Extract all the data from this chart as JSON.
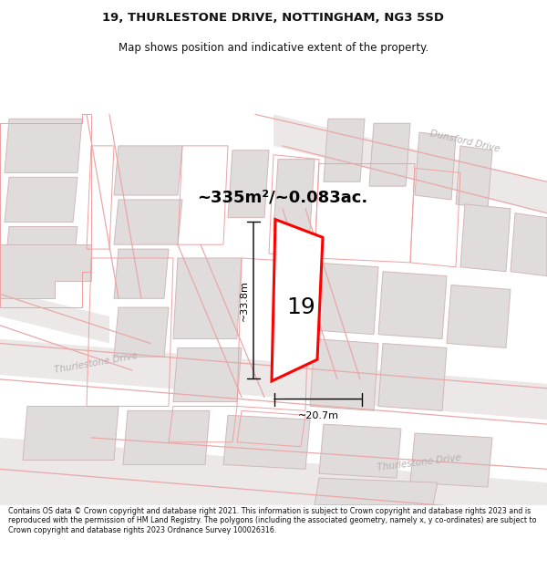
{
  "title": "19, THURLESTONE DRIVE, NOTTINGHAM, NG3 5SD",
  "subtitle": "Map shows position and indicative extent of the property.",
  "area_text": "~335m²/~0.083ac.",
  "width_text": "~20.7m",
  "height_text": "~33.8m",
  "number_text": "19",
  "footer": "Contains OS data © Crown copyright and database right 2021. This information is subject to Crown copyright and database rights 2023 and is reproduced with the permission of HM Land Registry. The polygons (including the associated geometry, namely x, y co-ordinates) are subject to Crown copyright and database rights 2023 Ordnance Survey 100026316.",
  "map_bg": "#f2eeee",
  "building_fill": "#d8d4d4",
  "building_edge": "#c8b8b8",
  "plot_outline_color": "#f0a0a0",
  "plot_red": "#ff0000",
  "road_fill": "#e8e4e4",
  "street_label_color": "#b8b0b0",
  "title_color": "#111111",
  "footer_color": "#111111",
  "title_fontsize": 9.5,
  "subtitle_fontsize": 8.5,
  "footer_fontsize": 5.8,
  "area_fontsize": 13,
  "number_fontsize": 18,
  "dim_fontsize": 8
}
